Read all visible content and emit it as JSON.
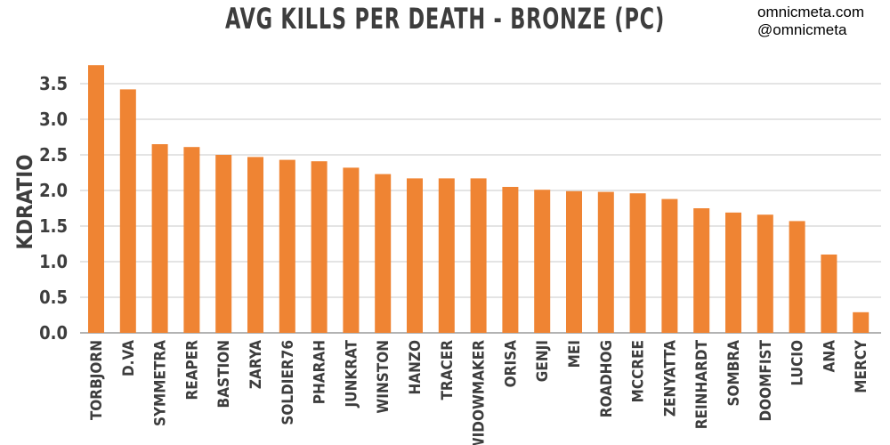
{
  "credits": {
    "site": "omnicmeta.com",
    "handle": "@omnicmeta"
  },
  "chart_data": {
    "type": "bar",
    "title": "AVG KILLS PER DEATH - BRONZE (PC)",
    "ylabel": "KDRATIO",
    "xlabel": "",
    "ylim": [
      0,
      3.85
    ],
    "yticks": [
      "0.0",
      "0.5",
      "1.0",
      "1.5",
      "2.0",
      "2.5",
      "3.0",
      "3.5"
    ],
    "grid": true,
    "bar_color": "#ef8433",
    "categories": [
      "TORBJORN",
      "D.VA",
      "SYMMETRA",
      "REAPER",
      "BASTION",
      "ZARYA",
      "SOLDIER76",
      "PHARAH",
      "JUNKRAT",
      "WINSTON",
      "HANZO",
      "TRACER",
      "WIDOWMAKER",
      "ORISA",
      "GENJI",
      "MEI",
      "ROADHOG",
      "MCCREE",
      "ZENYATTA",
      "REINHARDT",
      "SOMBRA",
      "DOOMFIST",
      "LUCIO",
      "ANA",
      "MERCY"
    ],
    "values": [
      3.76,
      3.42,
      2.65,
      2.61,
      2.5,
      2.47,
      2.43,
      2.41,
      2.32,
      2.23,
      2.17,
      2.17,
      2.17,
      2.05,
      2.01,
      1.99,
      1.98,
      1.96,
      1.88,
      1.75,
      1.69,
      1.66,
      1.57,
      1.1,
      0.29
    ]
  }
}
